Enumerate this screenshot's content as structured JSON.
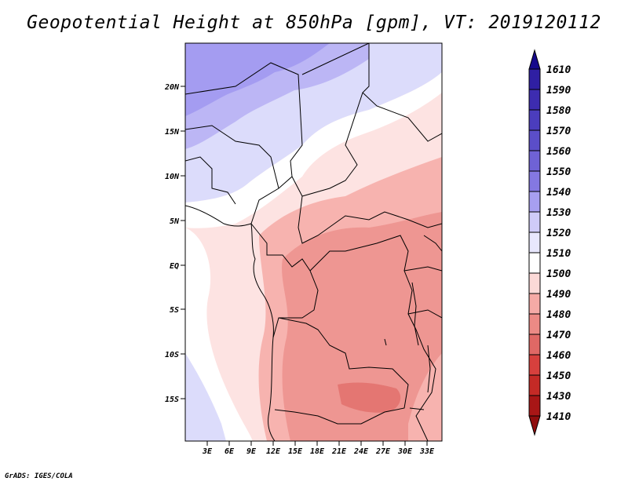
{
  "title": "Geopotential Height at 850hPa [gpm], VT: 2019120112",
  "credit": "GrADS: IGES/COLA",
  "map": {
    "lat_ticks": [
      "20N",
      "15N",
      "10N",
      "5N",
      "EQ",
      "5S",
      "10S",
      "15S"
    ],
    "lon_ticks": [
      "3E",
      "6E",
      "9E",
      "12E",
      "15E",
      "18E",
      "21E",
      "24E",
      "27E",
      "30E",
      "33E"
    ]
  },
  "colorbar": {
    "labels": [
      "1610",
      "1590",
      "1580",
      "1570",
      "1560",
      "1550",
      "1540",
      "1530",
      "1520",
      "1510",
      "1500",
      "1490",
      "1480",
      "1470",
      "1460",
      "1450",
      "1430",
      "1410"
    ],
    "colors": [
      "#160a8c",
      "#2f1fa3",
      "#3d2cb0",
      "#4b3dbd",
      "#5b4ec9",
      "#6f62d6",
      "#8478e2",
      "#a79ff0",
      "#cfcbf8",
      "#e8e7fd",
      "#ffffff",
      "#fbd9d7",
      "#f5aaa6",
      "#ec8a85",
      "#e06865",
      "#d7403d",
      "#c42a26",
      "#a81616",
      "#8f0d0d"
    ]
  }
}
